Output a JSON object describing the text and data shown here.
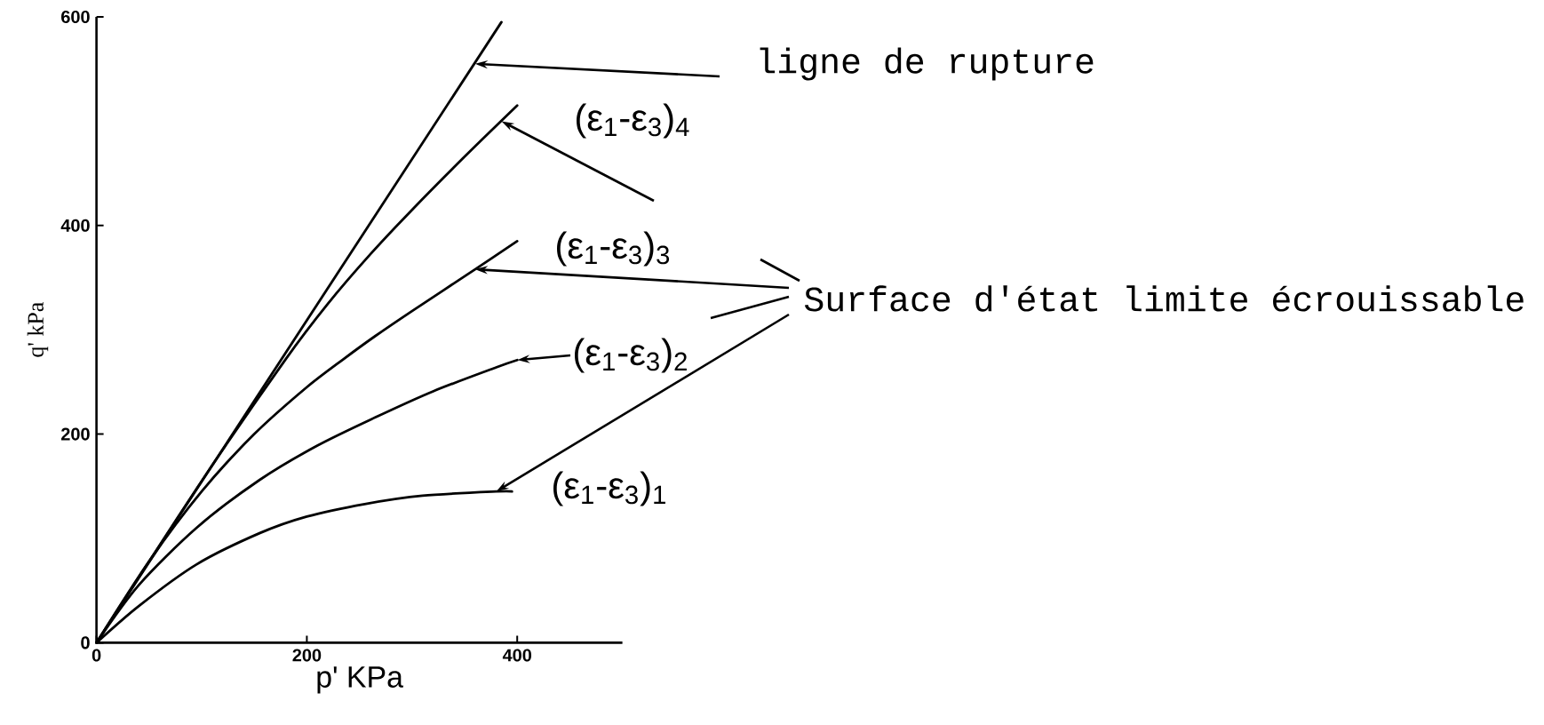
{
  "chart_data": {
    "type": "line",
    "xlabel": "p' KPa",
    "ylabel": "q' kPa",
    "xlim": [
      0,
      500
    ],
    "ylim": [
      0,
      600
    ],
    "xticks": [
      0,
      200,
      400
    ],
    "yticks": [
      0,
      200,
      400,
      600
    ],
    "marker": "none",
    "line_style": "solid",
    "series": [
      {
        "color": "#000000",
        "x": [
          0,
          385
        ],
        "values": [
          0,
          595
        ]
      },
      {
        "color": "#000000",
        "x": [
          0,
          100,
          180,
          220,
          260,
          300,
          350,
          400
        ],
        "values": [
          0,
          155,
          272,
          325,
          372,
          415,
          466,
          515
        ]
      },
      {
        "color": "#000000",
        "x": [
          0,
          50,
          100,
          150,
          200,
          235,
          265,
          300,
          360,
          400
        ],
        "values": [
          0,
          78,
          145,
          200,
          245,
          272,
          294,
          318,
          358,
          385
        ]
      },
      {
        "color": "#000000",
        "x": [
          0,
          40,
          95,
          155,
          210,
          265,
          320,
          380,
          400
        ],
        "values": [
          0,
          55,
          110,
          156,
          189,
          216,
          241,
          264,
          271
        ]
      },
      {
        "color": "#000000",
        "x": [
          0,
          40,
          95,
          155,
          200,
          255,
          310,
          380,
          395
        ],
        "values": [
          0,
          35,
          75,
          105,
          121,
          133,
          141,
          145,
          145
        ]
      }
    ],
    "annotations": [
      {
        "text": "ligne de rupture",
        "x": 360,
        "y": 555
      },
      {
        "text": "(ε$_{1}$-ε$_{3}$)$_{4}$",
        "x": 385,
        "y": 500
      },
      {
        "text": "(ε$_{1}$-ε$_{3}$)$_{3}$",
        "x": 360,
        "y": 358
      },
      {
        "text": "(ε$_{1}$-ε$_{3}$)$_{2}$",
        "x": 400,
        "y": 271
      },
      {
        "text": "(ε$_{1}$-ε$_{3}$)$_{1}$",
        "x": 380,
        "y": 145
      },
      "Surface d'état limite écrouissable"
    ]
  }
}
